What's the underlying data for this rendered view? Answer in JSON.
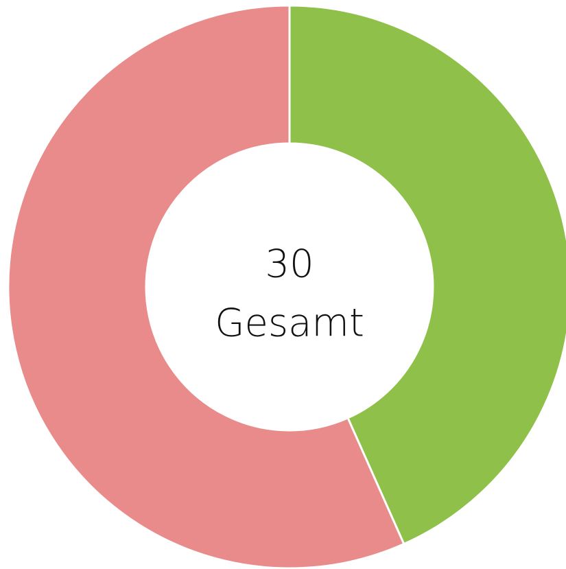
{
  "chart_data": {
    "type": "donut",
    "values": [
      13,
      17
    ],
    "colors": [
      "#8fc04a",
      "#e88b8a"
    ],
    "center_value": 30,
    "center_label": "Gesamt"
  }
}
